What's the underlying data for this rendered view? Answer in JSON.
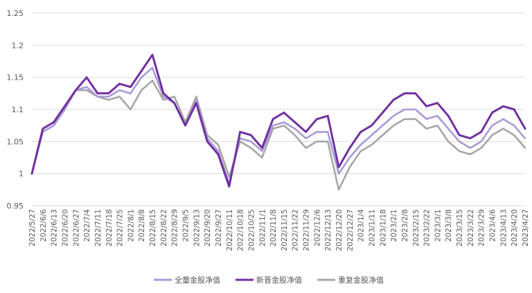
{
  "chart_data": {
    "type": "line",
    "ylim": [
      0.95,
      1.25
    ],
    "yticks": [
      "0.95",
      "1",
      "1.05",
      "1.1",
      "1.15",
      "1.2",
      "1.25"
    ],
    "grid": "horizontal",
    "legend_position": "bottom",
    "categories": [
      "2022/5/27",
      "2022/6/6",
      "2022/6/13",
      "2022/6/20",
      "2022/6/27",
      "2022/7/4",
      "2022/7/11",
      "2022/7/18",
      "2022/7/25",
      "2022/8/1",
      "2022/8/8",
      "2022/8/15",
      "2022/8/22",
      "2022/8/29",
      "2022/9/5",
      "2022/9/13",
      "2022/9/20",
      "2022/9/27",
      "2022/10/11",
      "2022/10/18",
      "2022/10/25",
      "2022/11/1",
      "2022/11/8",
      "2022/11/15",
      "2022/11/22",
      "2022/11/29",
      "2022/12/6",
      "2022/12/13",
      "2022/12/20",
      "2022/12/27",
      "2023/1/4",
      "2023/1/11",
      "2023/1/18",
      "2023/2/1",
      "2023/2/8",
      "2023/2/15",
      "2023/2/22",
      "2023/3/1",
      "2023/3/8",
      "2023/3/15",
      "2023/3/22",
      "2023/3/29",
      "2023/4/6",
      "2023/4/13",
      "2023/4/20",
      "2023/4/27"
    ],
    "series": [
      {
        "name": "全量金股净值",
        "color": "#a999d8",
        "values": [
          1.0,
          1.065,
          1.075,
          1.1,
          1.13,
          1.135,
          1.12,
          1.12,
          1.13,
          1.125,
          1.15,
          1.165,
          1.12,
          1.11,
          1.075,
          1.115,
          1.055,
          1.035,
          0.985,
          1.055,
          1.05,
          1.035,
          1.075,
          1.08,
          1.07,
          1.055,
          1.065,
          1.065,
          1.0,
          1.025,
          1.045,
          1.06,
          1.075,
          1.09,
          1.1,
          1.1,
          1.085,
          1.09,
          1.07,
          1.05,
          1.04,
          1.05,
          1.075,
          1.085,
          1.075,
          1.055
        ]
      },
      {
        "name": "新晋金股净值",
        "color": "#7030a0",
        "values": [
          1.0,
          1.07,
          1.08,
          1.105,
          1.13,
          1.15,
          1.125,
          1.125,
          1.14,
          1.135,
          1.16,
          1.185,
          1.125,
          1.11,
          1.075,
          1.11,
          1.05,
          1.03,
          0.98,
          1.065,
          1.06,
          1.04,
          1.085,
          1.095,
          1.08,
          1.065,
          1.085,
          1.09,
          1.01,
          1.04,
          1.065,
          1.075,
          1.095,
          1.115,
          1.125,
          1.125,
          1.105,
          1.11,
          1.09,
          1.06,
          1.055,
          1.065,
          1.095,
          1.105,
          1.1,
          1.07
        ]
      },
      {
        "name": "重复金股净值",
        "color": "#a6a6a6",
        "values": [
          1.0,
          1.065,
          1.075,
          1.1,
          1.13,
          1.13,
          1.12,
          1.115,
          1.12,
          1.1,
          1.13,
          1.145,
          1.115,
          1.12,
          1.08,
          1.12,
          1.06,
          1.045,
          0.995,
          1.05,
          1.04,
          1.025,
          1.07,
          1.075,
          1.06,
          1.04,
          1.05,
          1.05,
          0.975,
          1.01,
          1.035,
          1.045,
          1.06,
          1.075,
          1.085,
          1.085,
          1.07,
          1.075,
          1.05,
          1.035,
          1.03,
          1.04,
          1.06,
          1.07,
          1.06,
          1.04
        ]
      }
    ]
  }
}
